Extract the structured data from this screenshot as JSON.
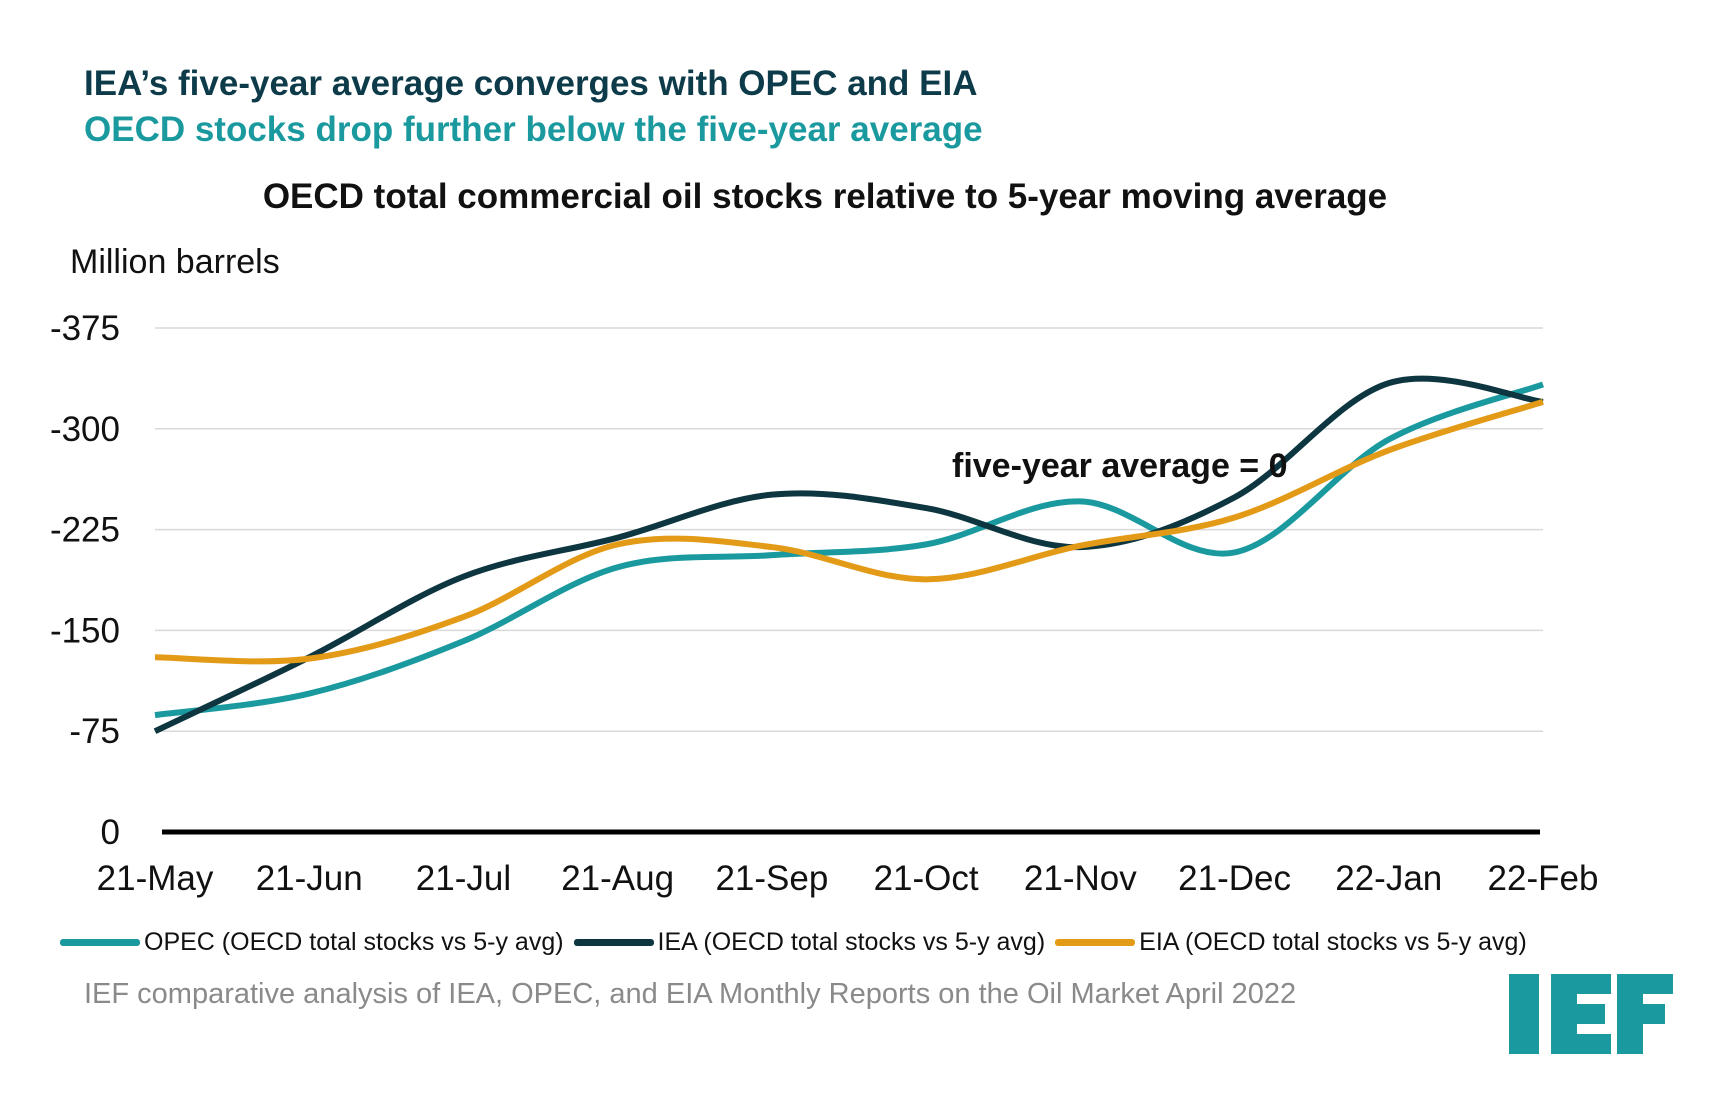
{
  "headline": {
    "line1": "IEA’s five-year average converges with OPEC and EIA",
    "line2": "OECD stocks drop further below the five-year average"
  },
  "source_note": "IEF comparative analysis of IEA, OPEC, and EIA Monthly Reports on the Oil Market April 2022",
  "logo_text": "IEF",
  "colors": {
    "opec": "#1a9a9f",
    "iea": "#0d3640",
    "eia": "#e39a16",
    "zero_line": "#000000",
    "grid": "#d9d9d9",
    "logo": "#1a9a9f"
  },
  "chart_data": {
    "type": "line",
    "title": "OECD total commercial oil stocks relative to 5-year moving average",
    "ylabel": "Million barrels",
    "xlabel": "",
    "ylim": [
      -375,
      0
    ],
    "yticks": [
      0,
      -75,
      -150,
      -225,
      -300,
      -375
    ],
    "categories": [
      "21-May",
      "21-Jun",
      "21-Jul",
      "21-Aug",
      "21-Sep",
      "21-Oct",
      "21-Nov",
      "21-Dec",
      "22-Jan",
      "22-Feb"
    ],
    "annotation": "five-year average = 0",
    "legend_position": "bottom",
    "series": [
      {
        "name": "OPEC (OECD total stocks vs 5-y avg)",
        "key": "opec",
        "values": [
          -87,
          -103,
          -142,
          -197,
          -206,
          -214,
          -246,
          -208,
          -292,
          -333
        ]
      },
      {
        "name": "IEA (OECD total stocks vs 5-y avg)",
        "key": "iea",
        "values": [
          -75,
          -130,
          -190,
          -219,
          -251,
          -241,
          -212,
          -249,
          -334,
          -320
        ]
      },
      {
        "name": "EIA (OECD total stocks vs 5-y avg)",
        "key": "eia",
        "values": [
          -130,
          -129,
          -160,
          -214,
          -212,
          -188,
          -213,
          -234,
          -284,
          -320
        ]
      }
    ]
  }
}
